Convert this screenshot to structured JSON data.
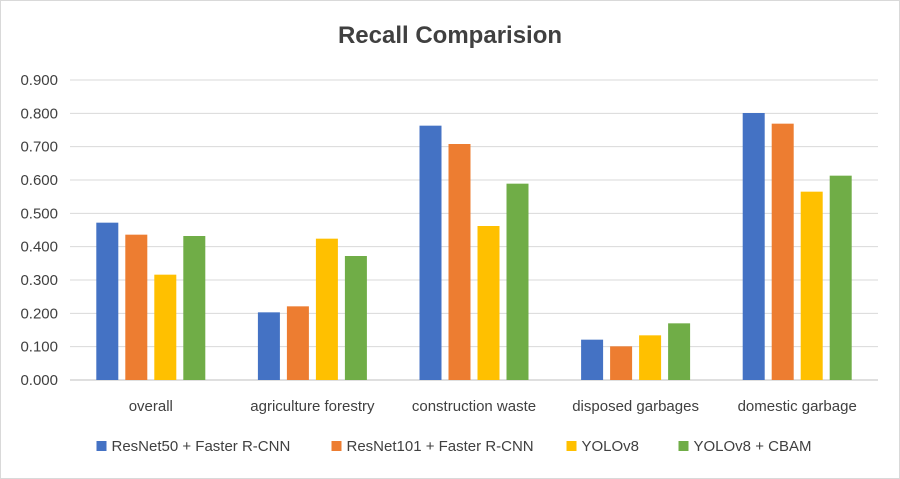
{
  "chart_data": {
    "type": "bar",
    "title": "Recall Comparision",
    "xlabel": "",
    "ylabel": "",
    "ylim": [
      0,
      0.9
    ],
    "yticks": [
      "0.000",
      "0.100",
      "0.200",
      "0.300",
      "0.400",
      "0.500",
      "0.600",
      "0.700",
      "0.800",
      "0.900"
    ],
    "categories": [
      "overall",
      "agriculture forestry",
      "construction waste",
      "disposed garbages",
      "domestic garbage"
    ],
    "series": [
      {
        "name": "ResNet50 + Faster R-CNN",
        "color": "#4472c4",
        "values": [
          0.472,
          0.203,
          0.763,
          0.121,
          0.801
        ]
      },
      {
        "name": "ResNet101 + Faster R-CNN",
        "color": "#ed7d31",
        "values": [
          0.436,
          0.221,
          0.708,
          0.101,
          0.769
        ]
      },
      {
        "name": "YOLOv8",
        "color": "#ffc000",
        "values": [
          0.316,
          0.424,
          0.462,
          0.134,
          0.565
        ]
      },
      {
        "name": "YOLOv8 + CBAM",
        "color": "#70ad47",
        "values": [
          0.432,
          0.372,
          0.589,
          0.17,
          0.613
        ]
      }
    ],
    "grid": true,
    "legend_position": "bottom"
  }
}
